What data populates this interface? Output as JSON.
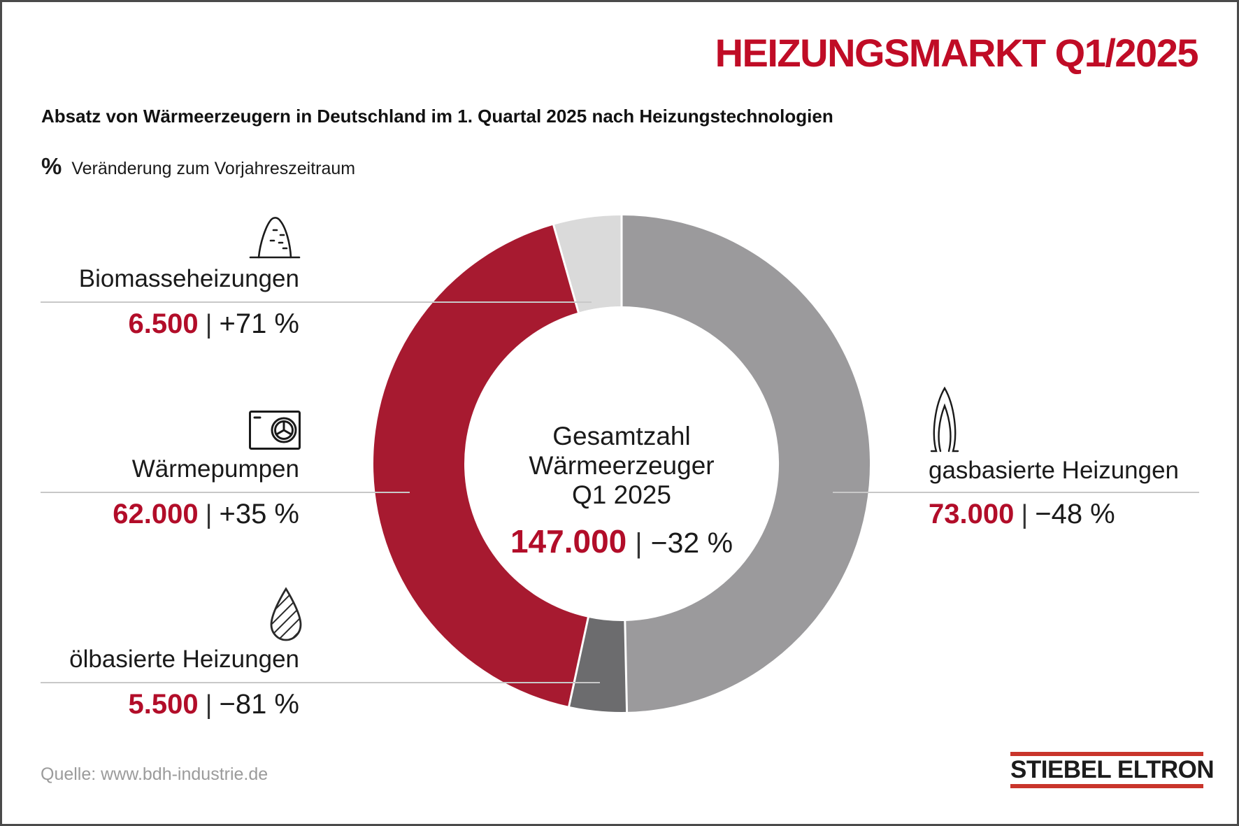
{
  "title": "HEIZUNGSMARKT Q1/2025",
  "subtitle": "Absatz von Wärmeerzeugern in Deutschland im 1. Quartal 2025 nach Heizungstechnologien",
  "note": {
    "symbol": "%",
    "text": "Veränderung zum Vorjahreszeitraum"
  },
  "separator": "|",
  "source": "Quelle: www.bdh-industrie.de",
  "logo": {
    "text": "STIEBEL ELTRON",
    "bar_color": "#C9352B"
  },
  "colors": {
    "title_red": "#C00C26",
    "value_red": "#B20D29",
    "donut_red": "#A71A30",
    "gas_gray": "#9B9A9C",
    "oil_gray": "#6C6C6E",
    "biomass_gray": "#DADADA",
    "leader_line": "#C8C8C8",
    "border": "#4A4A4A",
    "source_gray": "#9B9B9B"
  },
  "chart_data": {
    "type": "pie",
    "donut": true,
    "title": "Absatz von Wärmeerzeugern in Deutschland im 1. Quartal 2025 nach Heizungstechnologien",
    "unit_note": "% Veränderung zum Vorjahreszeitraum",
    "start_angle_deg": 0,
    "direction": "clockwise",
    "segments": [
      {
        "label": "gasbasierte Heizungen",
        "value": 73000,
        "value_label": "73.000",
        "change": "−48 %",
        "color": "#9B9A9C",
        "icon": "gas-flame-icon"
      },
      {
        "label": "ölbasierte Heizungen",
        "value": 5500,
        "value_label": "5.500",
        "change": "−81 %",
        "color": "#6C6C6E",
        "icon": "oil-drop-icon"
      },
      {
        "label": "Wärmepumpen",
        "value": 62000,
        "value_label": "62.000",
        "change": "+35 %",
        "color": "#A71A30",
        "icon": "heat-pump-icon"
      },
      {
        "label": "Biomasseheizungen",
        "value": 6500,
        "value_label": "6.500",
        "change": "+71 %",
        "color": "#DADADA",
        "icon": "biomass-pile-icon"
      }
    ],
    "center": {
      "lines": [
        "Gesamtzahl",
        "Wärmeerzeuger",
        "Q1 2025"
      ],
      "value": 147000,
      "value_label": "147.000",
      "change": "−32 %"
    }
  }
}
